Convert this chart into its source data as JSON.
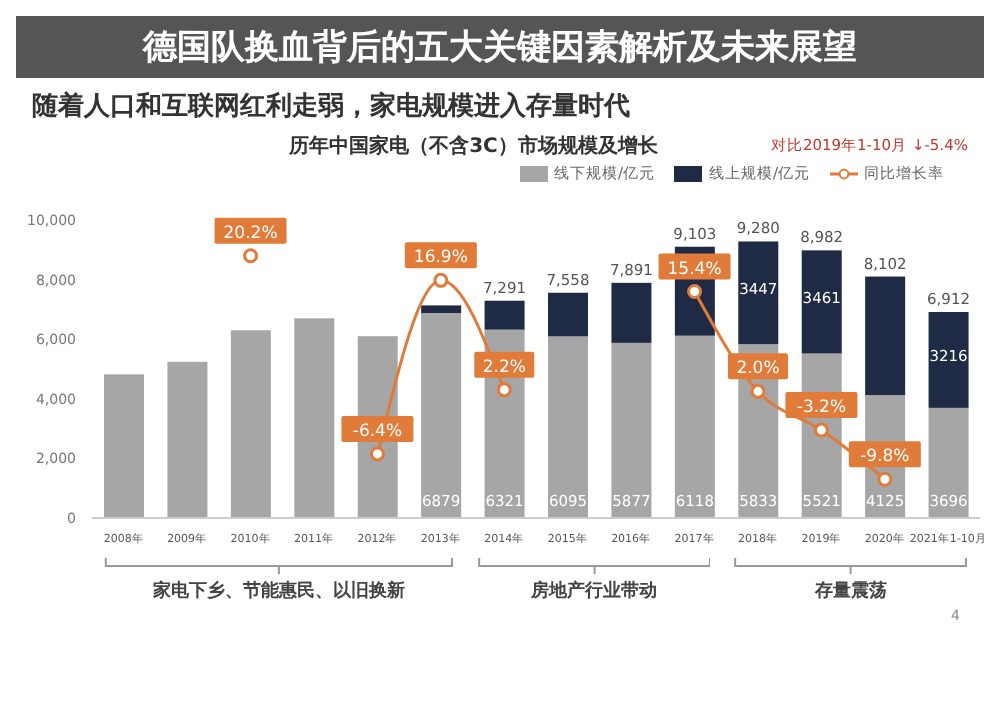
{
  "chart_data": {
    "type": "bar",
    "title": "德国队换血背后的五大关键因素解析及未来展望",
    "subtitle": "随着人口和互联网红利走弱，家电规模进入存量时代",
    "categories": [
      "2008年",
      "2009年",
      "2010年",
      "2011年",
      "2012年",
      "2013年",
      "2014年",
      "2015年",
      "2016年",
      "2017年",
      "2018年",
      "2019年",
      "2020年",
      "2021年1-10月"
    ],
    "stacked": true,
    "series": [
      {
        "name": "线下规模/亿元",
        "color": "#a6a6a6",
        "values": [
          4820,
          5240,
          6300,
          6700,
          6100,
          6879,
          6321,
          6095,
          5877,
          6118,
          5833,
          5521,
          4125,
          3696
        ],
        "value_labels": [
          null,
          null,
          null,
          null,
          null,
          "6879",
          "6321",
          "6095",
          "5877",
          "6118",
          "5833",
          "5521",
          "4125",
          "3696"
        ]
      },
      {
        "name": "线上规模/亿元",
        "color": "#1f2a44",
        "values": [
          null,
          null,
          null,
          null,
          null,
          255,
          970,
          1463,
          2014,
          2985,
          3447,
          3461,
          3977,
          3216
        ],
        "value_labels": [
          null,
          null,
          null,
          null,
          null,
          null,
          null,
          null,
          null,
          null,
          "3447",
          "3461",
          null,
          "3216"
        ]
      },
      {
        "name": "同比增长率",
        "type": "line",
        "axis": "y2",
        "color": "#e07b39",
        "values": [
          null,
          null,
          20.2,
          null,
          -6.4,
          16.9,
          2.2,
          null,
          null,
          15.4,
          2.0,
          -3.2,
          -9.8,
          null
        ],
        "value_labels": [
          null,
          null,
          "20.2%",
          null,
          "-6.4%",
          "16.9%",
          "2.2%",
          null,
          null,
          "15.4%",
          "2.0%",
          "-3.2%",
          "-9.8%",
          null
        ]
      }
    ],
    "totals": [
      null,
      null,
      null,
      null,
      null,
      null,
      "7,291",
      "7,558",
      "7,891",
      "9,103",
      "9,280",
      "8,982",
      "8,102",
      "6,912"
    ],
    "ylim": [
      0,
      10000
    ],
    "yticks": [
      {
        "value": 0,
        "label": "0"
      },
      {
        "value": 2000,
        "label": "2,000"
      },
      {
        "value": 4000,
        "label": "4,000"
      },
      {
        "value": 6000,
        "label": "6,000"
      },
      {
        "value": 8000,
        "label": "8,000"
      },
      {
        "value": 10000,
        "label": "10,000"
      }
    ],
    "y2lim": [
      -15,
      25
    ],
    "marker": "circle",
    "legend": "top right",
    "annotations": [
      "历年中国家电（不含3C）市场规模及增长",
      "对比2019年1-10月 ↓-5.4%",
      "家电下乡、节能惠民、以旧换新",
      "房地产行业带动",
      "存量震荡",
      "4"
    ]
  }
}
